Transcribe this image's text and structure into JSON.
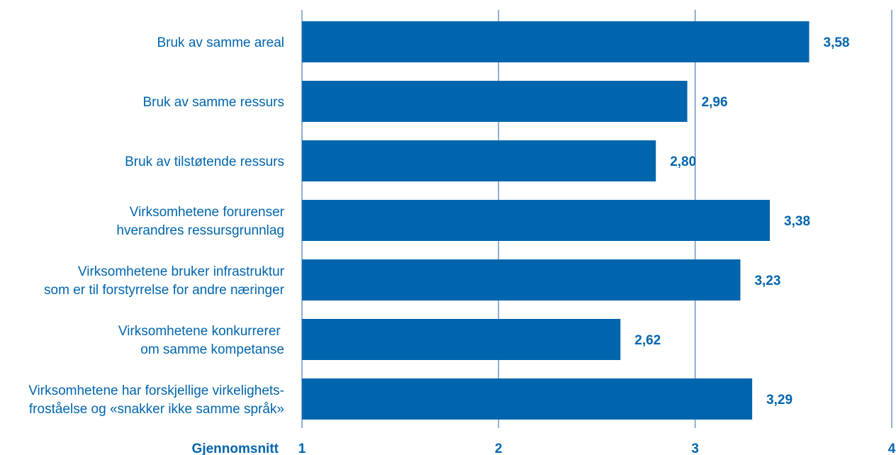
{
  "chart_data": {
    "type": "bar",
    "orientation": "horizontal",
    "categories": [
      [
        "Bruk av samme areal"
      ],
      [
        "Bruk av samme ressurs"
      ],
      [
        "Bruk av tilstøtende ressurs"
      ],
      [
        "Virksomhetene forurenser",
        "hverandres ressursgrunnlag"
      ],
      [
        "Virksomhetene bruker infrastruktur",
        "som er til forstyrrelse for andre næringer"
      ],
      [
        "Virksomhetene konkurrerer ",
        "om samme kompetanse"
      ],
      [
        "Virksomhetene har forskjellige virkelighets-",
        "froståelse og «snakker ikke samme språk»"
      ]
    ],
    "values": [
      3.58,
      2.96,
      2.8,
      3.38,
      3.23,
      2.62,
      3.29
    ],
    "value_labels": [
      "3,58",
      "2,96",
      "2,80",
      "3,38",
      "3,23",
      "2,62",
      "3,29"
    ],
    "xlabel": "Gjennomsnitt",
    "xlim": [
      1,
      4
    ],
    "xticks": [
      1,
      2,
      3,
      4
    ],
    "xtick_labels": [
      "1",
      "2",
      "3",
      "4"
    ],
    "grid": true,
    "colors": {
      "bar": "#0065ad",
      "text": "#0065ad",
      "grid": "#6d95c3"
    }
  }
}
